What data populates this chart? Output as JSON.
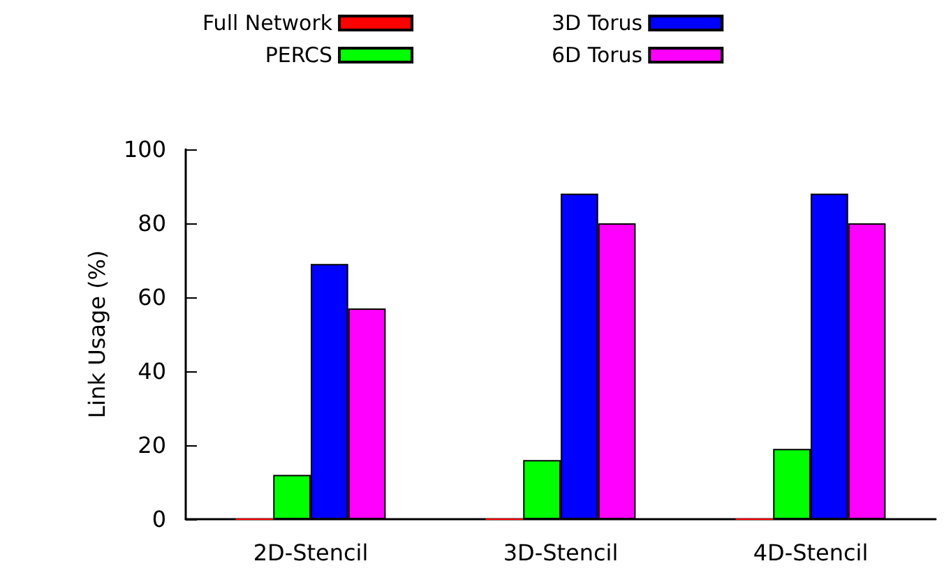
{
  "chart_data": {
    "type": "bar",
    "ylabel": "Link Usage (%)",
    "categories": [
      "2D-Stencil",
      "3D-Stencil",
      "4D-Stencil"
    ],
    "series": [
      {
        "name": "Full Network",
        "color": "#ff0000",
        "values": [
          0,
          0,
          0
        ]
      },
      {
        "name": "PERCS",
        "color": "#00ff00",
        "values": [
          12,
          16,
          19
        ]
      },
      {
        "name": "3D Torus",
        "color": "#0000ff",
        "values": [
          69,
          88,
          88
        ]
      },
      {
        "name": "6D Torus",
        "color": "#ff00ff",
        "values": [
          57,
          80,
          80
        ]
      }
    ],
    "ylim": [
      0,
      100
    ],
    "yticks": [
      0,
      20,
      40,
      60,
      80,
      100
    ],
    "grid": false,
    "legend": "top"
  }
}
